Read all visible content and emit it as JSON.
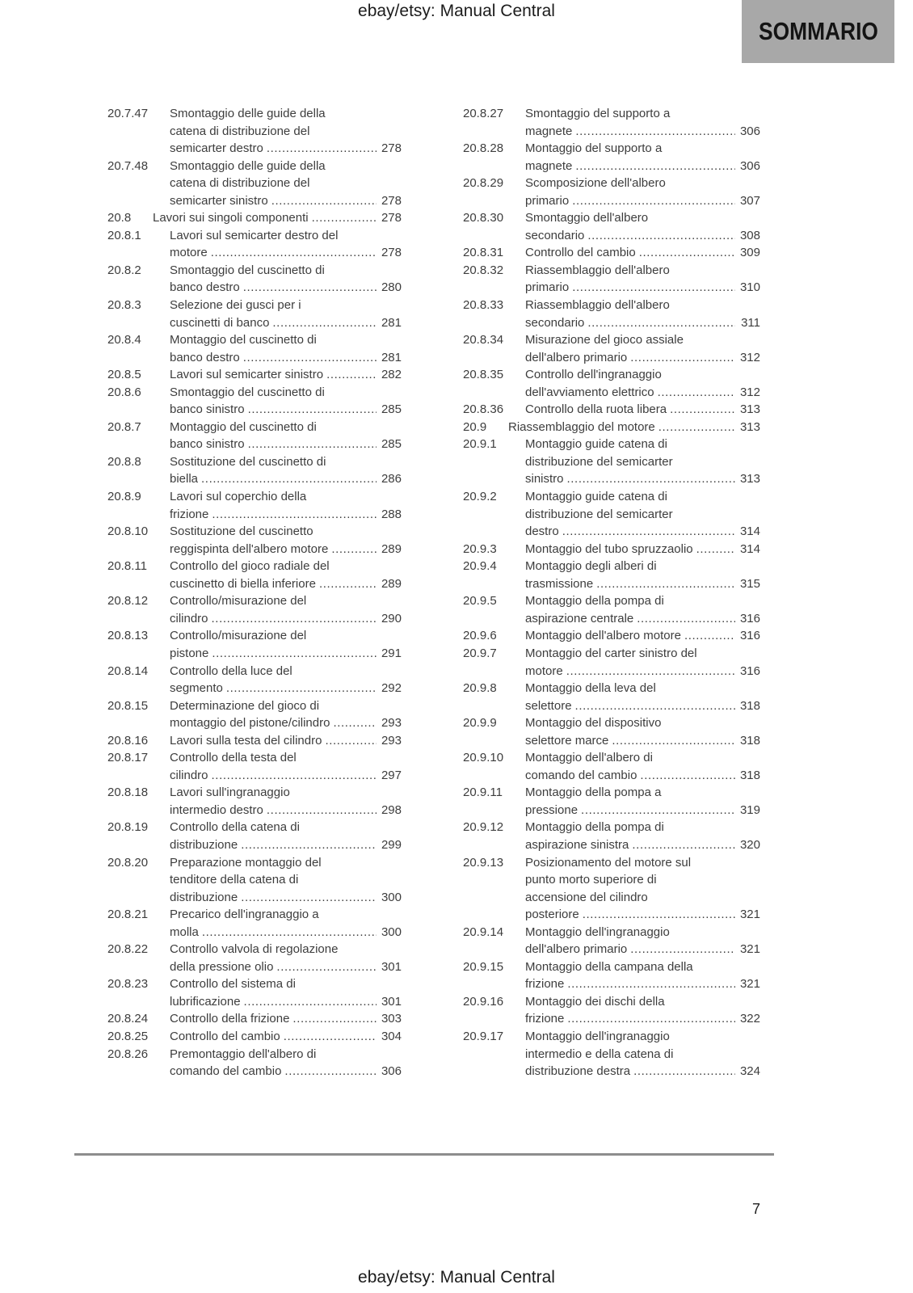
{
  "header": {
    "doc_title": "ebay/etsy: Manual Central",
    "page_label": "SOMMARIO"
  },
  "footer": {
    "doc_title": "ebay/etsy: Manual Central",
    "page_number": "7"
  },
  "colors": {
    "sommario_bg": "#a8a8a8",
    "body_text": "#3d3d3d",
    "rule": "#8d8d8d"
  },
  "toc": {
    "left_column": [
      {
        "num": "20.7.47",
        "lines": [
          "Smontaggio delle guide della",
          "catena di distribuzione del",
          "semicarter destro"
        ],
        "page": "278"
      },
      {
        "num": "20.7.48",
        "lines": [
          "Smontaggio delle guide della",
          "catena di distribuzione del",
          "semicarter sinistro"
        ],
        "page": "278"
      },
      {
        "num": "20.8",
        "section": true,
        "lines": [
          "Lavori sui singoli componenti"
        ],
        "page": "278"
      },
      {
        "num": "20.8.1",
        "lines": [
          "Lavori sul semicarter destro del",
          "motore"
        ],
        "page": "278"
      },
      {
        "num": "20.8.2",
        "lines": [
          "Smontaggio del cuscinetto di",
          "banco destro"
        ],
        "page": "280"
      },
      {
        "num": "20.8.3",
        "lines": [
          "Selezione dei gusci per i",
          "cuscinetti di banco"
        ],
        "page": "281"
      },
      {
        "num": "20.8.4",
        "lines": [
          "Montaggio del cuscinetto di",
          "banco destro"
        ],
        "page": "281"
      },
      {
        "num": "20.8.5",
        "lines": [
          "Lavori sul semicarter sinistro"
        ],
        "page": "282"
      },
      {
        "num": "20.8.6",
        "lines": [
          "Smontaggio del cuscinetto di",
          "banco sinistro"
        ],
        "page": "285"
      },
      {
        "num": "20.8.7",
        "lines": [
          "Montaggio del cuscinetto di",
          "banco sinistro"
        ],
        "page": "285"
      },
      {
        "num": "20.8.8",
        "lines": [
          "Sostituzione del cuscinetto di",
          "biella"
        ],
        "page": "286"
      },
      {
        "num": "20.8.9",
        "lines": [
          "Lavori sul coperchio della",
          "frizione"
        ],
        "page": "288"
      },
      {
        "num": "20.8.10",
        "lines": [
          "Sostituzione del cuscinetto",
          "reggispinta dell'albero motore"
        ],
        "page": "289"
      },
      {
        "num": "20.8.11",
        "lines": [
          "Controllo del gioco radiale del",
          "cuscinetto di biella inferiore"
        ],
        "page": "289"
      },
      {
        "num": "20.8.12",
        "lines": [
          "Controllo/misurazione del",
          "cilindro"
        ],
        "page": "290"
      },
      {
        "num": "20.8.13",
        "lines": [
          "Controllo/misurazione del",
          "pistone"
        ],
        "page": "291"
      },
      {
        "num": "20.8.14",
        "lines": [
          "Controllo della luce del",
          "segmento"
        ],
        "page": "292"
      },
      {
        "num": "20.8.15",
        "lines": [
          "Determinazione del gioco di",
          "montaggio del pistone/cilindro"
        ],
        "page": "293"
      },
      {
        "num": "20.8.16",
        "lines": [
          "Lavori sulla testa del cilindro"
        ],
        "page": "293"
      },
      {
        "num": "20.8.17",
        "lines": [
          "Controllo della testa del",
          "cilindro"
        ],
        "page": "297"
      },
      {
        "num": "20.8.18",
        "lines": [
          "Lavori sull'ingranaggio",
          "intermedio destro"
        ],
        "page": "298"
      },
      {
        "num": "20.8.19",
        "lines": [
          "Controllo della catena di",
          "distribuzione"
        ],
        "page": "299"
      },
      {
        "num": "20.8.20",
        "lines": [
          "Preparazione montaggio del",
          "tenditore della catena di",
          "distribuzione"
        ],
        "page": "300"
      },
      {
        "num": "20.8.21",
        "lines": [
          "Precarico dell'ingranaggio a",
          "molla"
        ],
        "page": "300"
      },
      {
        "num": "20.8.22",
        "lines": [
          "Controllo valvola di regolazione",
          "della pressione olio"
        ],
        "page": "301"
      },
      {
        "num": "20.8.23",
        "lines": [
          "Controllo del sistema di",
          "lubrificazione"
        ],
        "page": "301"
      },
      {
        "num": "20.8.24",
        "lines": [
          "Controllo della frizione"
        ],
        "page": "303"
      },
      {
        "num": "20.8.25",
        "lines": [
          "Controllo del cambio"
        ],
        "page": "304"
      },
      {
        "num": "20.8.26",
        "lines": [
          "Premontaggio dell'albero di",
          "comando del cambio"
        ],
        "page": "306"
      }
    ],
    "right_column": [
      {
        "num": "20.8.27",
        "lines": [
          "Smontaggio del supporto a",
          "magnete"
        ],
        "page": "306"
      },
      {
        "num": "20.8.28",
        "lines": [
          "Montaggio del supporto a",
          "magnete"
        ],
        "page": "306"
      },
      {
        "num": "20.8.29",
        "lines": [
          "Scomposizione dell'albero",
          "primario"
        ],
        "page": "307"
      },
      {
        "num": "20.8.30",
        "lines": [
          "Smontaggio dell'albero",
          "secondario"
        ],
        "page": "308"
      },
      {
        "num": "20.8.31",
        "lines": [
          "Controllo del cambio"
        ],
        "page": "309"
      },
      {
        "num": "20.8.32",
        "lines": [
          "Riassemblaggio dell'albero",
          "primario"
        ],
        "page": "310"
      },
      {
        "num": "20.8.33",
        "lines": [
          "Riassemblaggio dell'albero",
          "secondario"
        ],
        "page": "311"
      },
      {
        "num": "20.8.34",
        "lines": [
          "Misurazione del gioco assiale",
          "dell'albero primario"
        ],
        "page": "312"
      },
      {
        "num": "20.8.35",
        "lines": [
          "Controllo dell'ingranaggio",
          "dell'avviamento elettrico"
        ],
        "page": "312"
      },
      {
        "num": "20.8.36",
        "lines": [
          "Controllo della ruota libera"
        ],
        "page": "313"
      },
      {
        "num": "20.9",
        "section": true,
        "lines": [
          "Riassemblaggio del motore"
        ],
        "page": "313"
      },
      {
        "num": "20.9.1",
        "lines": [
          "Montaggio guide catena di",
          "distribuzione del semicarter",
          "sinistro"
        ],
        "page": "313"
      },
      {
        "num": "20.9.2",
        "lines": [
          "Montaggio guide catena di",
          "distribuzione del semicarter",
          "destro"
        ],
        "page": "314"
      },
      {
        "num": "20.9.3",
        "lines": [
          "Montaggio del tubo spruzzaolio"
        ],
        "page": "314"
      },
      {
        "num": "20.9.4",
        "lines": [
          "Montaggio degli alberi di",
          "trasmissione"
        ],
        "page": "315"
      },
      {
        "num": "20.9.5",
        "lines": [
          "Montaggio della pompa di",
          "aspirazione centrale"
        ],
        "page": "316"
      },
      {
        "num": "20.9.6",
        "lines": [
          "Montaggio dell'albero motore"
        ],
        "page": "316"
      },
      {
        "num": "20.9.7",
        "lines": [
          "Montaggio del carter sinistro del",
          "motore"
        ],
        "page": "316"
      },
      {
        "num": "20.9.8",
        "lines": [
          "Montaggio della leva del",
          "selettore"
        ],
        "page": "318"
      },
      {
        "num": "20.9.9",
        "lines": [
          "Montaggio del dispositivo",
          "selettore marce"
        ],
        "page": "318"
      },
      {
        "num": "20.9.10",
        "lines": [
          "Montaggio dell'albero di",
          "comando del cambio"
        ],
        "page": "318"
      },
      {
        "num": "20.9.11",
        "lines": [
          "Montaggio della pompa a",
          "pressione"
        ],
        "page": "319"
      },
      {
        "num": "20.9.12",
        "lines": [
          "Montaggio della pompa di",
          "aspirazione sinistra"
        ],
        "page": "320"
      },
      {
        "num": "20.9.13",
        "lines": [
          "Posizionamento del motore sul",
          "punto morto superiore di",
          "accensione del cilindro",
          "posteriore"
        ],
        "page": "321"
      },
      {
        "num": "20.9.14",
        "lines": [
          "Montaggio dell'ingranaggio",
          "dell'albero primario"
        ],
        "page": "321"
      },
      {
        "num": "20.9.15",
        "lines": [
          "Montaggio della campana della",
          "frizione"
        ],
        "page": "321"
      },
      {
        "num": "20.9.16",
        "lines": [
          "Montaggio dei dischi della",
          "frizione"
        ],
        "page": "322"
      },
      {
        "num": "20.9.17",
        "lines": [
          "Montaggio dell'ingranaggio",
          "intermedio e della catena di",
          "distribuzione destra"
        ],
        "page": "324"
      }
    ]
  }
}
